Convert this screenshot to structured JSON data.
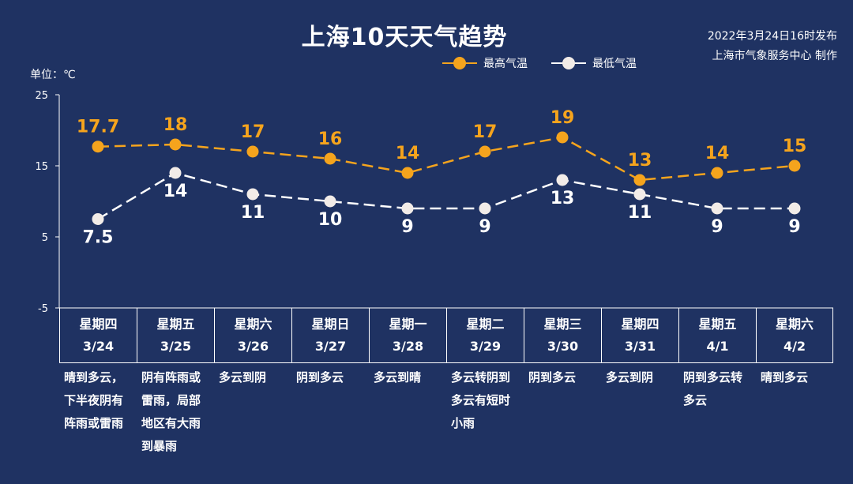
{
  "title": "上海10天天气趋势",
  "issue_time": "2022年3月24日16时发布",
  "issuer": "上海市气象服务中心 制作",
  "unit_label": "单位：℃",
  "legend": {
    "high_label": "最高气温",
    "low_label": "最低气温"
  },
  "colors": {
    "background": "#1f3262",
    "high": "#f5a41d",
    "low": "#ffffff",
    "axis": "#ffffff"
  },
  "chart_data": {
    "type": "line",
    "y_ticks": [
      "25",
      "15",
      "5",
      "-5"
    ],
    "ylim": [
      -5,
      25
    ],
    "categories": [
      "3/24",
      "3/25",
      "3/26",
      "3/27",
      "3/28",
      "3/29",
      "3/30",
      "3/31",
      "4/1",
      "4/2"
    ],
    "series": [
      {
        "name": "最高气温",
        "values": [
          17.7,
          18,
          17,
          16,
          14,
          17,
          19,
          13,
          14,
          15
        ],
        "labels": [
          "17.7",
          "18",
          "17",
          "16",
          "14",
          "17",
          "19",
          "13",
          "14",
          "15"
        ]
      },
      {
        "name": "最低气温",
        "values": [
          7.5,
          14,
          11,
          10,
          9,
          9,
          13,
          11,
          9,
          9
        ],
        "labels": [
          "7.5",
          "14",
          "11",
          "10",
          "9",
          "9",
          "13",
          "11",
          "9",
          "9"
        ]
      }
    ]
  },
  "days": [
    {
      "weekday": "星期四",
      "date": "3/24",
      "weather": "晴到多云，下半夜阴有阵雨或雷雨"
    },
    {
      "weekday": "星期五",
      "date": "3/25",
      "weather": "阴有阵雨或雷雨，局部地区有大雨到暴雨"
    },
    {
      "weekday": "星期六",
      "date": "3/26",
      "weather": "多云到阴"
    },
    {
      "weekday": "星期日",
      "date": "3/27",
      "weather": "阴到多云"
    },
    {
      "weekday": "星期一",
      "date": "3/28",
      "weather": "多云到晴"
    },
    {
      "weekday": "星期二",
      "date": "3/29",
      "weather": "多云转阴到多云有短时小雨"
    },
    {
      "weekday": "星期三",
      "date": "3/30",
      "weather": "阴到多云"
    },
    {
      "weekday": "星期四",
      "date": "3/31",
      "weather": "多云到阴"
    },
    {
      "weekday": "星期五",
      "date": "4/1",
      "weather": "阴到多云转多云"
    },
    {
      "weekday": "星期六",
      "date": "4/2",
      "weather": "晴到多云"
    }
  ]
}
